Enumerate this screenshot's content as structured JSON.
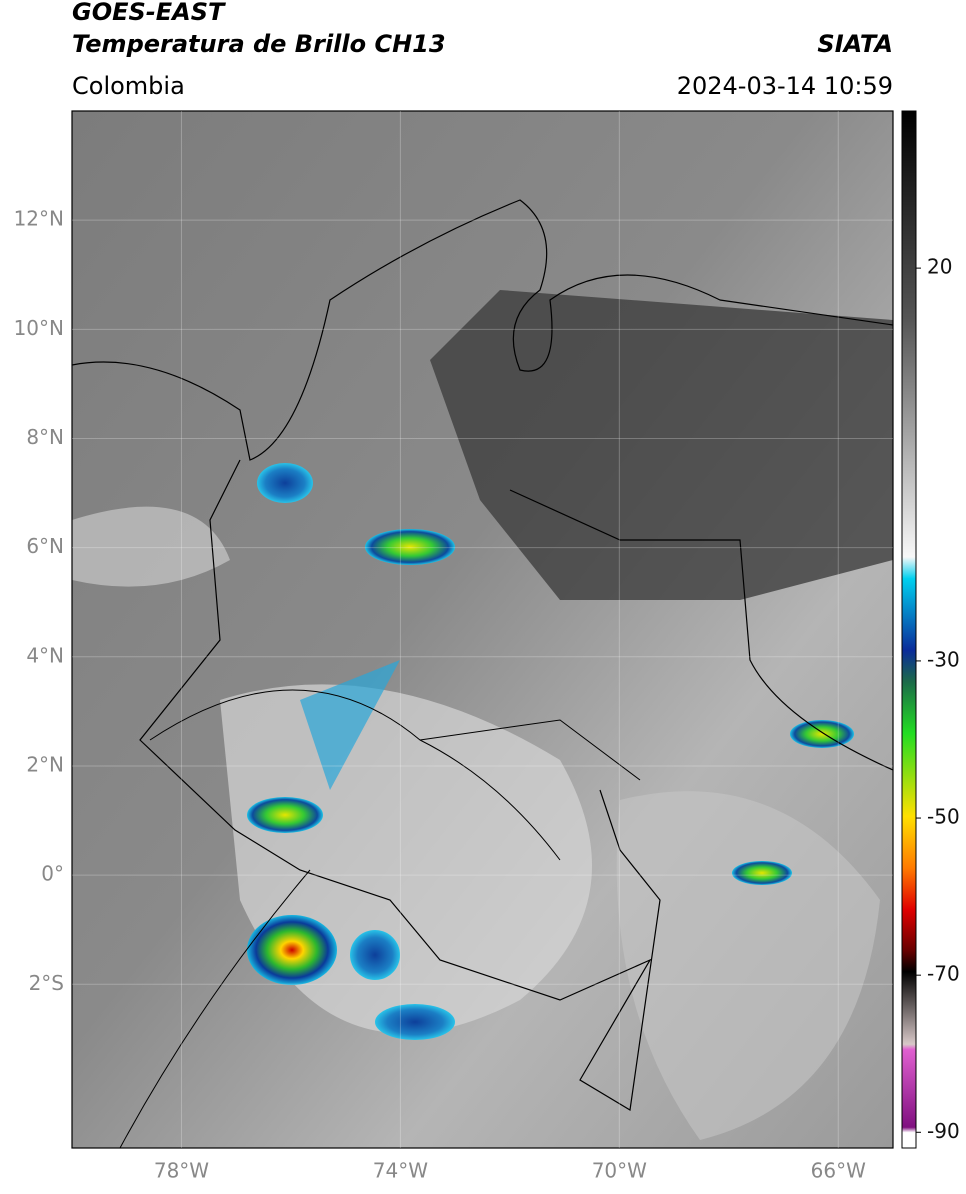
{
  "header": {
    "title": "GOES-EAST",
    "subtitle": "Temperatura de Brillo CH13",
    "region": "Colombia",
    "source": "SIATA",
    "datetime": "2024-03-14 10:59"
  },
  "map": {
    "lon_range": [
      -80,
      -65
    ],
    "lat_range": [
      -5,
      14
    ],
    "grid": true,
    "lat_ticks": [
      {
        "value": 12,
        "label": "12°N"
      },
      {
        "value": 10,
        "label": "10°N"
      },
      {
        "value": 8,
        "label": "8°N"
      },
      {
        "value": 6,
        "label": "6°N"
      },
      {
        "value": 4,
        "label": "4°N"
      },
      {
        "value": 2,
        "label": "2°N"
      },
      {
        "value": 0,
        "label": "0°"
      },
      {
        "value": -2,
        "label": "2°S"
      }
    ],
    "lon_ticks": [
      {
        "value": -78,
        "label": "78°W"
      },
      {
        "value": -74,
        "label": "74°W"
      },
      {
        "value": -70,
        "label": "70°W"
      },
      {
        "value": -66,
        "label": "66°W"
      }
    ]
  },
  "colorbar": {
    "range": [
      -92,
      40
    ],
    "ticks": [
      20,
      -30,
      -50,
      -70,
      -90
    ]
  }
}
